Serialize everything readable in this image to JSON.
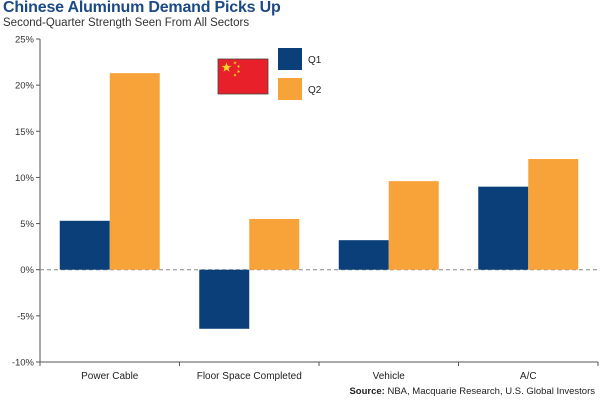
{
  "header": {
    "title": "Chinese Aluminum Demand Picks Up",
    "subtitle": "Second-Quarter Strength Seen From All Sectors"
  },
  "source": {
    "label": "Source:",
    "text": "NBA, Macquarie Research, U.S. Global Investors"
  },
  "colors": {
    "q1": "#0b3f7a",
    "q2": "#f7a33a",
    "flag_red": "#e8202a",
    "flag_star": "#f8d626",
    "axis": "#555555",
    "zero_line": "#888888"
  },
  "icons": {
    "legend_flag": "china-flag-icon"
  },
  "chart_data": {
    "type": "bar",
    "categories": [
      "Power Cable",
      "Floor Space Completed",
      "Vehicle",
      "A/C"
    ],
    "series": [
      {
        "name": "Q1",
        "values": [
          5.3,
          -6.4,
          3.2,
          9.0
        ]
      },
      {
        "name": "Q2",
        "values": [
          21.3,
          5.5,
          9.6,
          12.0
        ]
      }
    ],
    "ylim": [
      -10,
      25
    ],
    "yticks": [
      -10,
      -5,
      0,
      5,
      10,
      15,
      20,
      25
    ],
    "ytick_labels": [
      "-10%",
      "-5%",
      "0%",
      "5%",
      "10%",
      "15%",
      "20%",
      "25%"
    ],
    "title": "Chinese Aluminum Demand Picks Up",
    "subtitle": "Second-Quarter Strength Seen From All Sectors",
    "xlabel": "",
    "ylabel": "",
    "grid": false,
    "legend_position": "top-center"
  }
}
